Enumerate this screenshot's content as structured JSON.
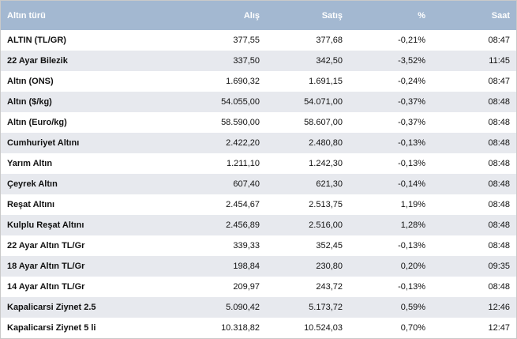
{
  "table": {
    "headers": [
      "Altın türü",
      "Alış",
      "Satış",
      "%",
      "Saat"
    ],
    "rows": [
      [
        "ALTIN (TL/GR)",
        "377,55",
        "377,68",
        "-0,21%",
        "08:47"
      ],
      [
        "22 Ayar Bilezik",
        "337,50",
        "342,50",
        "-3,52%",
        "11:45"
      ],
      [
        "Altın (ONS)",
        "1.690,32",
        "1.691,15",
        "-0,24%",
        "08:47"
      ],
      [
        "Altın ($/kg)",
        "54.055,00",
        "54.071,00",
        "-0,37%",
        "08:48"
      ],
      [
        "Altın (Euro/kg)",
        "58.590,00",
        "58.607,00",
        "-0,37%",
        "08:48"
      ],
      [
        "Cumhuriyet Altını",
        "2.422,20",
        "2.480,80",
        "-0,13%",
        "08:48"
      ],
      [
        "Yarım Altın",
        "1.211,10",
        "1.242,30",
        "-0,13%",
        "08:48"
      ],
      [
        "Çeyrek Altın",
        "607,40",
        "621,30",
        "-0,14%",
        "08:48"
      ],
      [
        "Reşat Altını",
        "2.454,67",
        "2.513,75",
        "1,19%",
        "08:48"
      ],
      [
        "Kulplu Reşat Altını",
        "2.456,89",
        "2.516,00",
        "1,28%",
        "08:48"
      ],
      [
        "22 Ayar Altın TL/Gr",
        "339,33",
        "352,45",
        "-0,13%",
        "08:48"
      ],
      [
        "18 Ayar Altın TL/Gr",
        "198,84",
        "230,80",
        "0,20%",
        "09:35"
      ],
      [
        "14 Ayar Altın TL/Gr",
        "209,97",
        "243,72",
        "-0,13%",
        "08:48"
      ],
      [
        "Kapalicarsi Ziynet 2.5",
        "5.090,42",
        "5.173,72",
        "0,59%",
        "12:46"
      ],
      [
        "Kapalicarsi Ziynet 5 li",
        "10.318,82",
        "10.524,03",
        "0,70%",
        "12:47"
      ]
    ]
  },
  "colors": {
    "header_bg": "#a3b8d1",
    "row_alt_bg": "#e7e9ee",
    "border": "#c9c9c9"
  }
}
